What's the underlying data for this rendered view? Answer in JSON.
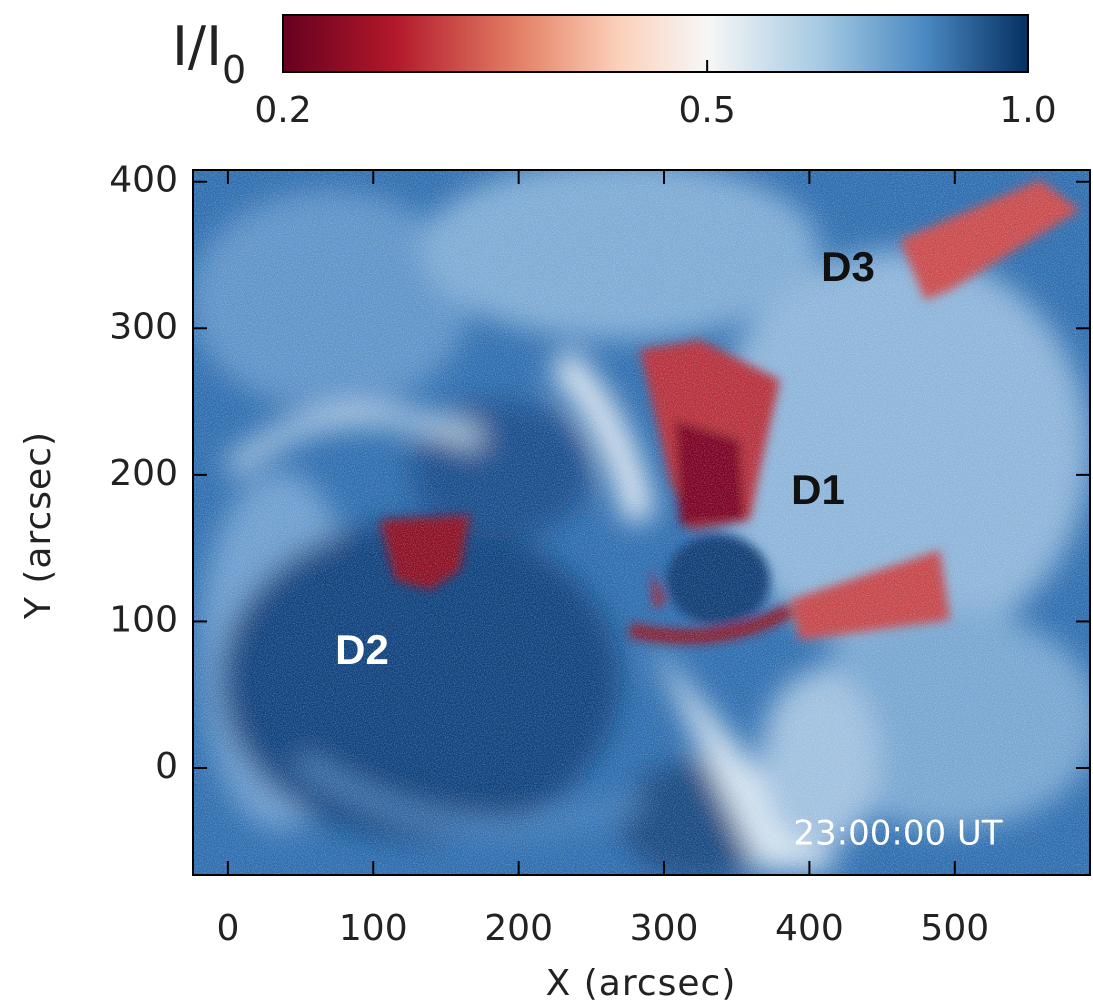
{
  "colorbar": {
    "label": "I/I",
    "label_subscript": "0",
    "scale": "log",
    "lim": [
      0.2,
      1
    ],
    "ticks": [
      0.2,
      0.5,
      {
        "value": 1,
        "label": "1.0"
      }
    ]
  },
  "image": {
    "xlabel": "X (arcsec)",
    "ylabel": "Y (arcsec)",
    "xlim": [
      -24,
      593
    ],
    "ylim": [
      -73,
      408
    ],
    "xticks": [
      0,
      100,
      200,
      300,
      400,
      500
    ],
    "yticks": [
      0,
      100,
      200,
      300,
      400
    ],
    "annotations": [
      "D1",
      "D2",
      "D3",
      "23:00:00 UT"
    ]
  }
}
